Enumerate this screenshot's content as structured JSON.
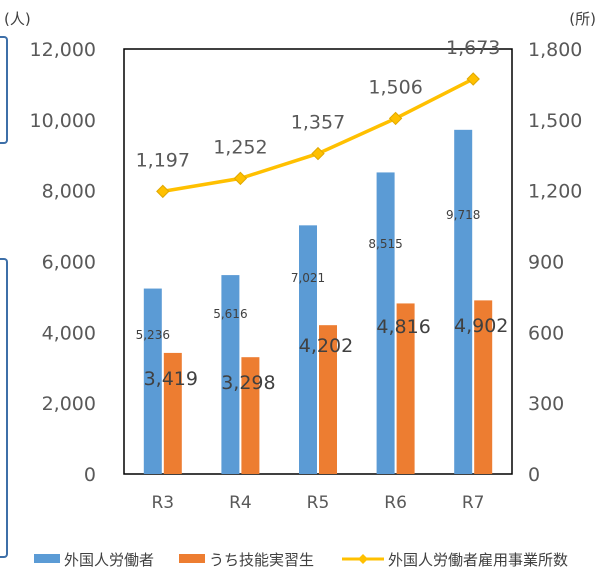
{
  "chart_data": {
    "type": "bar+line",
    "categories": [
      "R3",
      "R4",
      "R5",
      "R6",
      "R7"
    ],
    "series": [
      {
        "name": "外国人労働者",
        "kind": "bar",
        "axis": "left",
        "color": "#5b9bd5",
        "values": [
          5236,
          5616,
          7021,
          8515,
          9718
        ],
        "labels": [
          "5,236",
          "5,616",
          "7,021",
          "8,515",
          "9,718"
        ]
      },
      {
        "name": "うち技能実習生",
        "kind": "bar",
        "axis": "left",
        "color": "#ed7d31",
        "values": [
          3419,
          3298,
          4202,
          4816,
          4902
        ],
        "labels": [
          "3,419",
          "3,298",
          "4,202",
          "4,816",
          "4,902"
        ]
      },
      {
        "name": "外国人労働者雇用事業所数",
        "kind": "line",
        "axis": "right",
        "color": "#ffc000",
        "values": [
          1197,
          1252,
          1357,
          1506,
          1673
        ],
        "labels": [
          "1,197",
          "1,252",
          "1,357",
          "1,506",
          "1,673"
        ]
      }
    ],
    "left_axis": {
      "unit": "(人)",
      "ylim": [
        0,
        12000
      ],
      "ticks": [
        "0",
        "2,000",
        "4,000",
        "6,000",
        "8,000",
        "10,000",
        "12,000"
      ]
    },
    "right_axis": {
      "unit": "(所)",
      "ylim": [
        0,
        1800
      ],
      "ticks": [
        "0",
        "300",
        "600",
        "900",
        "1,200",
        "1,500",
        "1,800"
      ]
    },
    "grid": false,
    "legend_position": "bottom"
  }
}
